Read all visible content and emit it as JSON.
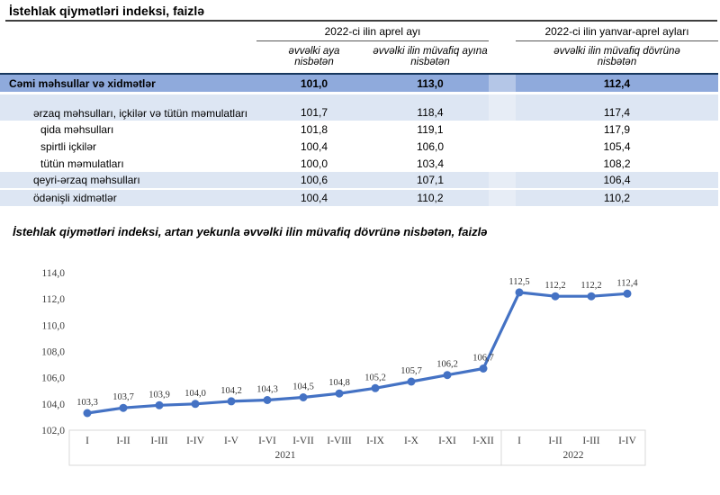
{
  "page_title": "İstehlak qiymətləri indeksi, faizlə",
  "table": {
    "col_groups": [
      {
        "label": "2022-ci ilin aprel ayı",
        "sub": [
          "əvvəlki aya nisbətən",
          "əvvəlki ilin müvafiq ayına nisbətən"
        ]
      },
      {
        "label": "2022-ci ilin yanvar-aprel ayları",
        "sub": [
          "əvvəlki ilin müvafiq dövrünə nisbətən"
        ]
      }
    ],
    "rows": [
      {
        "label": "Cəmi məhsullar və xidmətlər",
        "values": [
          "101,0",
          "113,0",
          "112,4"
        ]
      },
      {
        "label": "ərzaq məhsulları, içkilər və tütün məmulatları",
        "values": [
          "101,7",
          "118,4",
          "117,4"
        ]
      },
      {
        "label": "qida məhsulları",
        "values": [
          "101,8",
          "119,1",
          "117,9"
        ]
      },
      {
        "label": "spirtli içkilər",
        "values": [
          "100,4",
          "106,0",
          "105,4"
        ]
      },
      {
        "label": "tütün məmulatları",
        "values": [
          "100,0",
          "103,4",
          "108,2"
        ]
      },
      {
        "label": "qeyri-ərzaq məhsulları",
        "values": [
          "100,6",
          "107,1",
          "106,4"
        ]
      },
      {
        "label": "ödənişli xidmətlər",
        "values": [
          "100,4",
          "110,2",
          "110,2"
        ]
      }
    ]
  },
  "chart_title": "İstehlak qiymətləri indeksi, artan yekunla əvvəlki ilin müvafiq dövrünə nisbətən, faizlə",
  "chart_data": {
    "type": "line",
    "title": "İstehlak qiymətləri indeksi, artan yekunla əvvəlki ilin müvafiq dövrünə nisbətən, faizlə",
    "categories": [
      "I",
      "I-II",
      "I-III",
      "I-IV",
      "I-V",
      "I-VI",
      "I-VII",
      "I-VIII",
      "I-IX",
      "I-X",
      "I-XI",
      "I-XII",
      "I",
      "I-II",
      "I-III",
      "I-IV"
    ],
    "year_groups": [
      {
        "label": "2021",
        "span": 12
      },
      {
        "label": "2022",
        "span": 4
      }
    ],
    "series": [
      {
        "name": "İstehlak qiymətləri indeksi",
        "values": [
          103.3,
          103.7,
          103.9,
          104.0,
          104.2,
          104.3,
          104.5,
          104.8,
          105.2,
          105.7,
          106.2,
          106.7,
          112.5,
          112.2,
          112.2,
          112.4
        ],
        "value_labels": [
          "103,3",
          "103,7",
          "103,9",
          "104,0",
          "104,2",
          "104,3",
          "104,5",
          "104,8",
          "105,2",
          "105,7",
          "106,2",
          "106,7",
          "112,5",
          "112,2",
          "112,2",
          "112,4"
        ]
      }
    ],
    "xlabel": "",
    "ylabel": "",
    "ylim": [
      102,
      114
    ],
    "y_tick_step": 2,
    "y_tick_labels": [
      "102,0",
      "104,0",
      "106,0",
      "108,0",
      "110,0",
      "112,0",
      "114,0"
    ],
    "grid": false,
    "legend": false,
    "line_color": "#4472c4",
    "label_color": "#404040",
    "axis_box_color": "#d9d9d9"
  }
}
